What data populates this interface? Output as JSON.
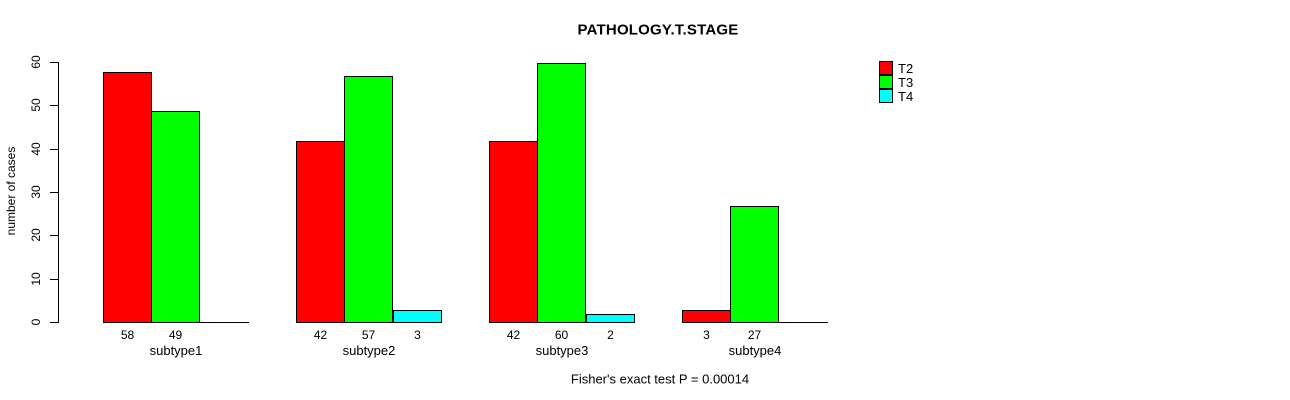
{
  "chart_data": {
    "type": "bar",
    "title": "PATHOLOGY.T.STAGE",
    "xlabel": "",
    "ylabel": "number of cases",
    "ylim": [
      0,
      60
    ],
    "yticks": [
      0,
      10,
      20,
      30,
      40,
      50,
      60
    ],
    "grid": false,
    "legend_position": "right",
    "show_bar_values": true,
    "categories": [
      "subtype1",
      "subtype2",
      "subtype3",
      "subtype4"
    ],
    "series": [
      {
        "name": "T2",
        "color": "#ff0000",
        "values": [
          58,
          42,
          42,
          3
        ]
      },
      {
        "name": "T3",
        "color": "#00ff00",
        "values": [
          49,
          57,
          60,
          27
        ]
      },
      {
        "name": "T4",
        "color": "#00ffff",
        "values": [
          0,
          3,
          2,
          0
        ]
      }
    ],
    "annotation": "Fisher's exact test P = 0.00014"
  },
  "legend": {
    "items": [
      {
        "label": "T2",
        "color": "#ff0000"
      },
      {
        "label": "T3",
        "color": "#00ff00"
      },
      {
        "label": "T4",
        "color": "#00ffff"
      }
    ]
  }
}
